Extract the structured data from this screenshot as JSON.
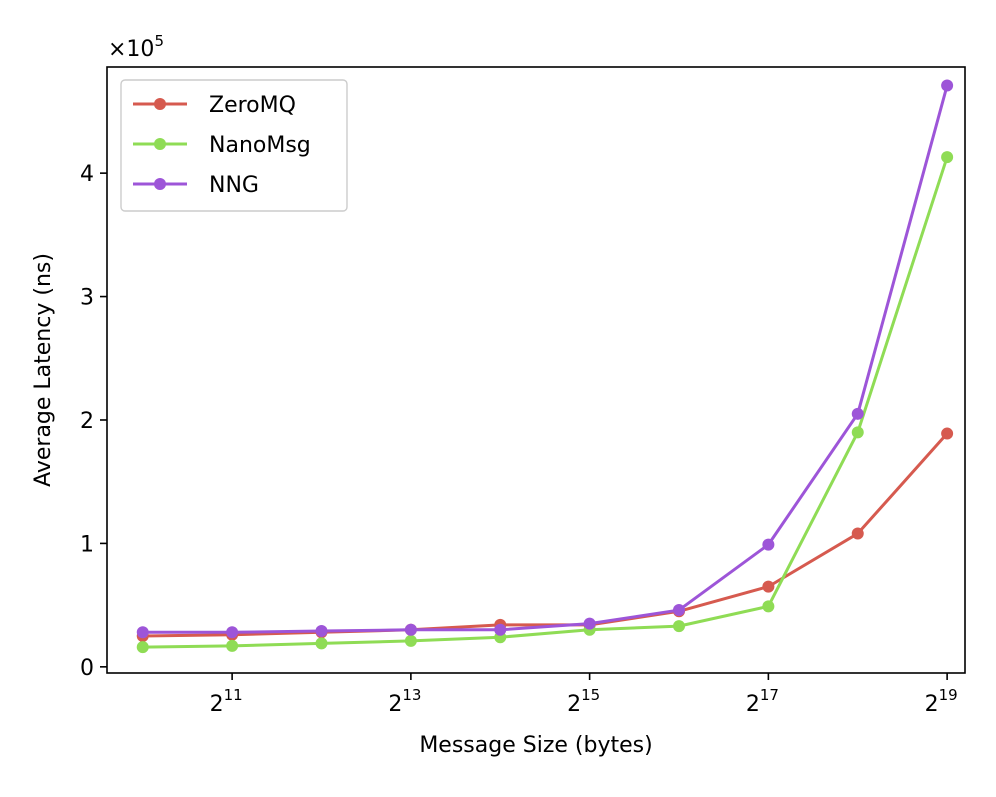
{
  "chart_data": {
    "type": "line",
    "xlabel": "Message Size (bytes)",
    "ylabel": "Average Latency (ns)",
    "y_multiplier": "×10",
    "y_multiplier_exp": "5",
    "x_scale": "log2",
    "x": [
      1024,
      2048,
      4096,
      8192,
      16384,
      32768,
      65536,
      131072,
      262144,
      524288
    ],
    "x_ticks": [
      {
        "value": 2048,
        "base": "2",
        "exp": "11"
      },
      {
        "value": 8192,
        "base": "2",
        "exp": "13"
      },
      {
        "value": 32768,
        "base": "2",
        "exp": "15"
      },
      {
        "value": 131072,
        "base": "2",
        "exp": "17"
      },
      {
        "value": 524288,
        "base": "2",
        "exp": "19"
      }
    ],
    "y_ticks": [
      0,
      1,
      2,
      3,
      4
    ],
    "y_tick_labels": [
      "0",
      "1",
      "2",
      "3",
      "4"
    ],
    "ylim": [
      -0.05,
      4.86
    ],
    "xlim_exp": [
      9.6,
      19.2
    ],
    "legend_position": "upper-left",
    "grid": false,
    "series": [
      {
        "name": "ZeroMQ",
        "color": "#d65a4f",
        "values": [
          0.25,
          0.26,
          0.28,
          0.3,
          0.34,
          0.34,
          0.45,
          0.65,
          1.08,
          1.89
        ]
      },
      {
        "name": "NanoMsg",
        "color": "#8fdc55",
        "values": [
          0.16,
          0.17,
          0.19,
          0.21,
          0.24,
          0.3,
          0.33,
          0.49,
          1.9,
          4.13
        ]
      },
      {
        "name": "NNG",
        "color": "#9d55d8",
        "values": [
          0.28,
          0.28,
          0.29,
          0.3,
          0.3,
          0.35,
          0.46,
          0.99,
          2.05,
          4.71
        ]
      }
    ]
  }
}
